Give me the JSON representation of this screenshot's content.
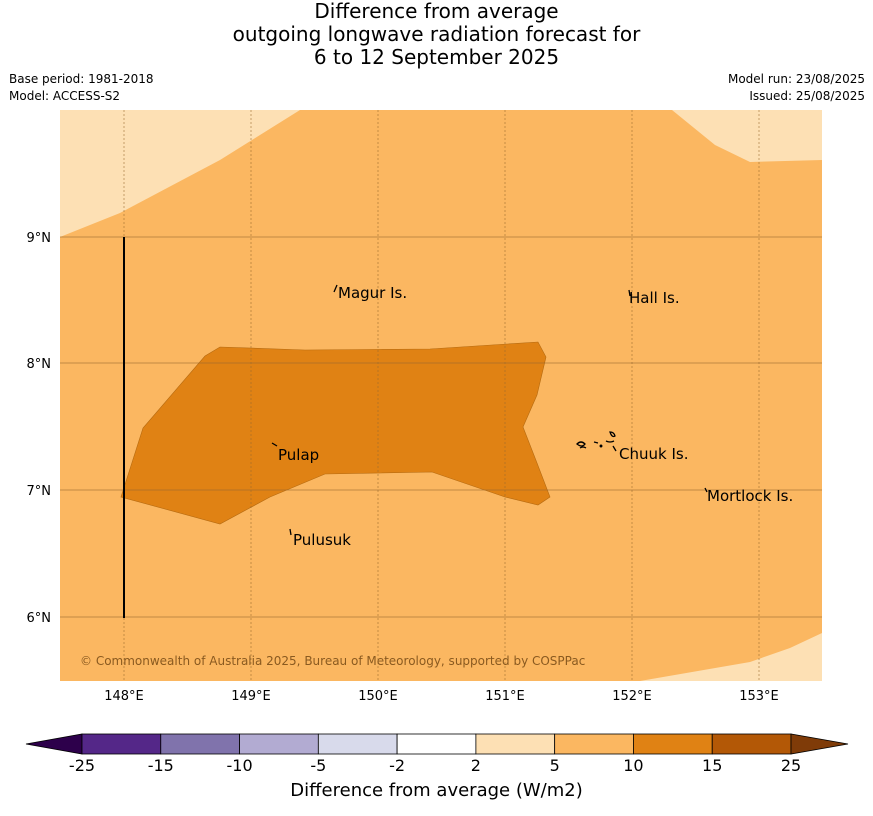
{
  "title": {
    "line1": "Difference from average",
    "line2": "outgoing longwave radiation forecast for",
    "line3": "6 to 12 September 2025"
  },
  "meta": {
    "base_period": "Base period: 1981-2018",
    "model": "Model: ACCESS-S2",
    "model_run": "Model run: 23/08/2025",
    "issued": "Issued: 25/08/2025"
  },
  "map": {
    "lon_labels": [
      "148°E",
      "149°E",
      "150°E",
      "151°E",
      "152°E",
      "153°E"
    ],
    "lat_labels": [
      "9°N",
      "8°N",
      "7°N",
      "6°N"
    ],
    "places": [
      "Magur Is.",
      "Hall Is.",
      "Pulap",
      "Chuuk Is.",
      "Mortlock Is.",
      "Pulusuk"
    ],
    "copyright": "© Commonwealth of Australia 2025, Bureau of Meteorology, supported by COSPPac",
    "fill_colors": {
      "2_to_5": "#fde0b4",
      "5_to_10": "#fbb761",
      "10_to_15": "#e08214"
    }
  },
  "colorbar": {
    "label": "Difference from average (W/m2)",
    "ticks": [
      "-25",
      "-15",
      "-10",
      "-5",
      "-2",
      "2",
      "5",
      "10",
      "15",
      "25"
    ],
    "colors": [
      "#2d004b",
      "#542788",
      "#8073ac",
      "#b2abd2",
      "#d8daeb",
      "#ffffff",
      "#fde0b4",
      "#fbb761",
      "#e08214",
      "#b35806",
      "#7f3b08"
    ]
  }
}
